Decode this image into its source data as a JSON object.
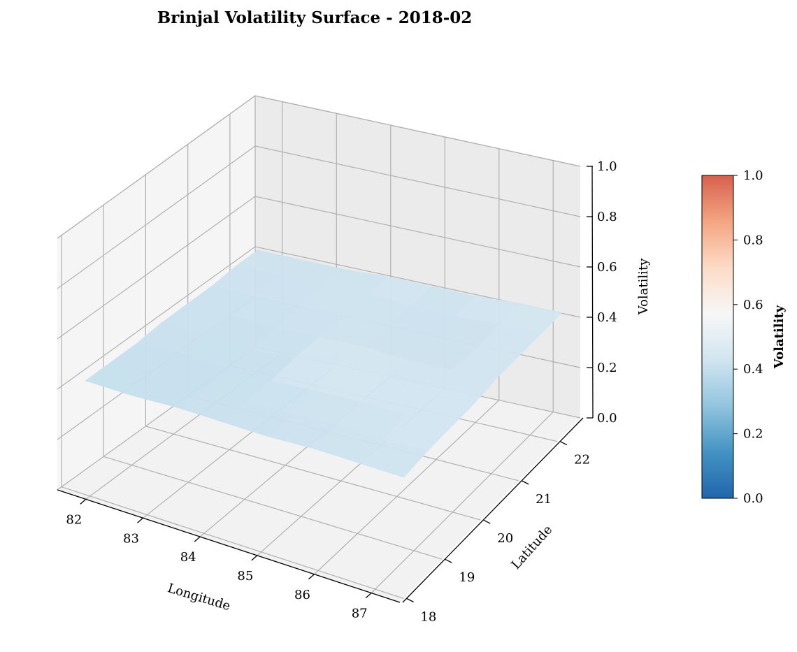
{
  "chart_data": {
    "type": "surface",
    "title": "Brinjal Volatility Surface - 2018-02",
    "xlabel": "Longitude",
    "ylabel": "Latitude",
    "zlabel": "Volatility",
    "x_ticks": [
      "82",
      "83",
      "84",
      "85",
      "86",
      "87"
    ],
    "y_ticks": [
      "18",
      "19",
      "20",
      "21",
      "22"
    ],
    "z_ticks": [
      "0.0",
      "0.2",
      "0.4",
      "0.6",
      "0.8",
      "1.0"
    ],
    "xlim": [
      81.5,
      87.5
    ],
    "ylim": [
      17.9,
      22.6
    ],
    "zlim": [
      0,
      1
    ],
    "surface": {
      "x": [
        81.7,
        82.5,
        83.3,
        84.1,
        84.9,
        85.7,
        86.5,
        87.3
      ],
      "y": [
        18.3,
        18.9,
        19.5,
        20.1,
        20.7,
        21.3,
        21.9,
        22.4
      ],
      "z": [
        [
          0.4,
          0.4,
          0.41,
          0.41,
          0.41,
          0.42,
          0.42,
          0.42
        ],
        [
          0.4,
          0.4,
          0.4,
          0.41,
          0.41,
          0.42,
          0.42,
          0.43
        ],
        [
          0.4,
          0.41,
          0.4,
          0.41,
          0.42,
          0.43,
          0.43,
          0.43
        ],
        [
          0.41,
          0.41,
          0.4,
          0.42,
          0.47,
          0.43,
          0.43,
          0.43
        ],
        [
          0.41,
          0.41,
          0.41,
          0.42,
          0.43,
          0.42,
          0.43,
          0.44
        ],
        [
          0.41,
          0.41,
          0.42,
          0.42,
          0.42,
          0.41,
          0.42,
          0.44
        ],
        [
          0.42,
          0.42,
          0.42,
          0.43,
          0.42,
          0.42,
          0.43,
          0.44
        ],
        [
          0.42,
          0.42,
          0.42,
          0.43,
          0.43,
          0.43,
          0.44,
          0.44
        ]
      ]
    },
    "colormap": "RdBu_r",
    "colormap_stops": [
      "#2166ac",
      "#4393c3",
      "#92c5de",
      "#d1e5f0",
      "#f7f7f7",
      "#fddbc7",
      "#f4a582",
      "#d6604d"
    ],
    "colorbar": {
      "label": "Volatility",
      "range": [
        0,
        1
      ],
      "ticks": [
        "0.0",
        "0.2",
        "0.4",
        "0.6",
        "0.8",
        "1.0"
      ]
    },
    "grid": true
  }
}
